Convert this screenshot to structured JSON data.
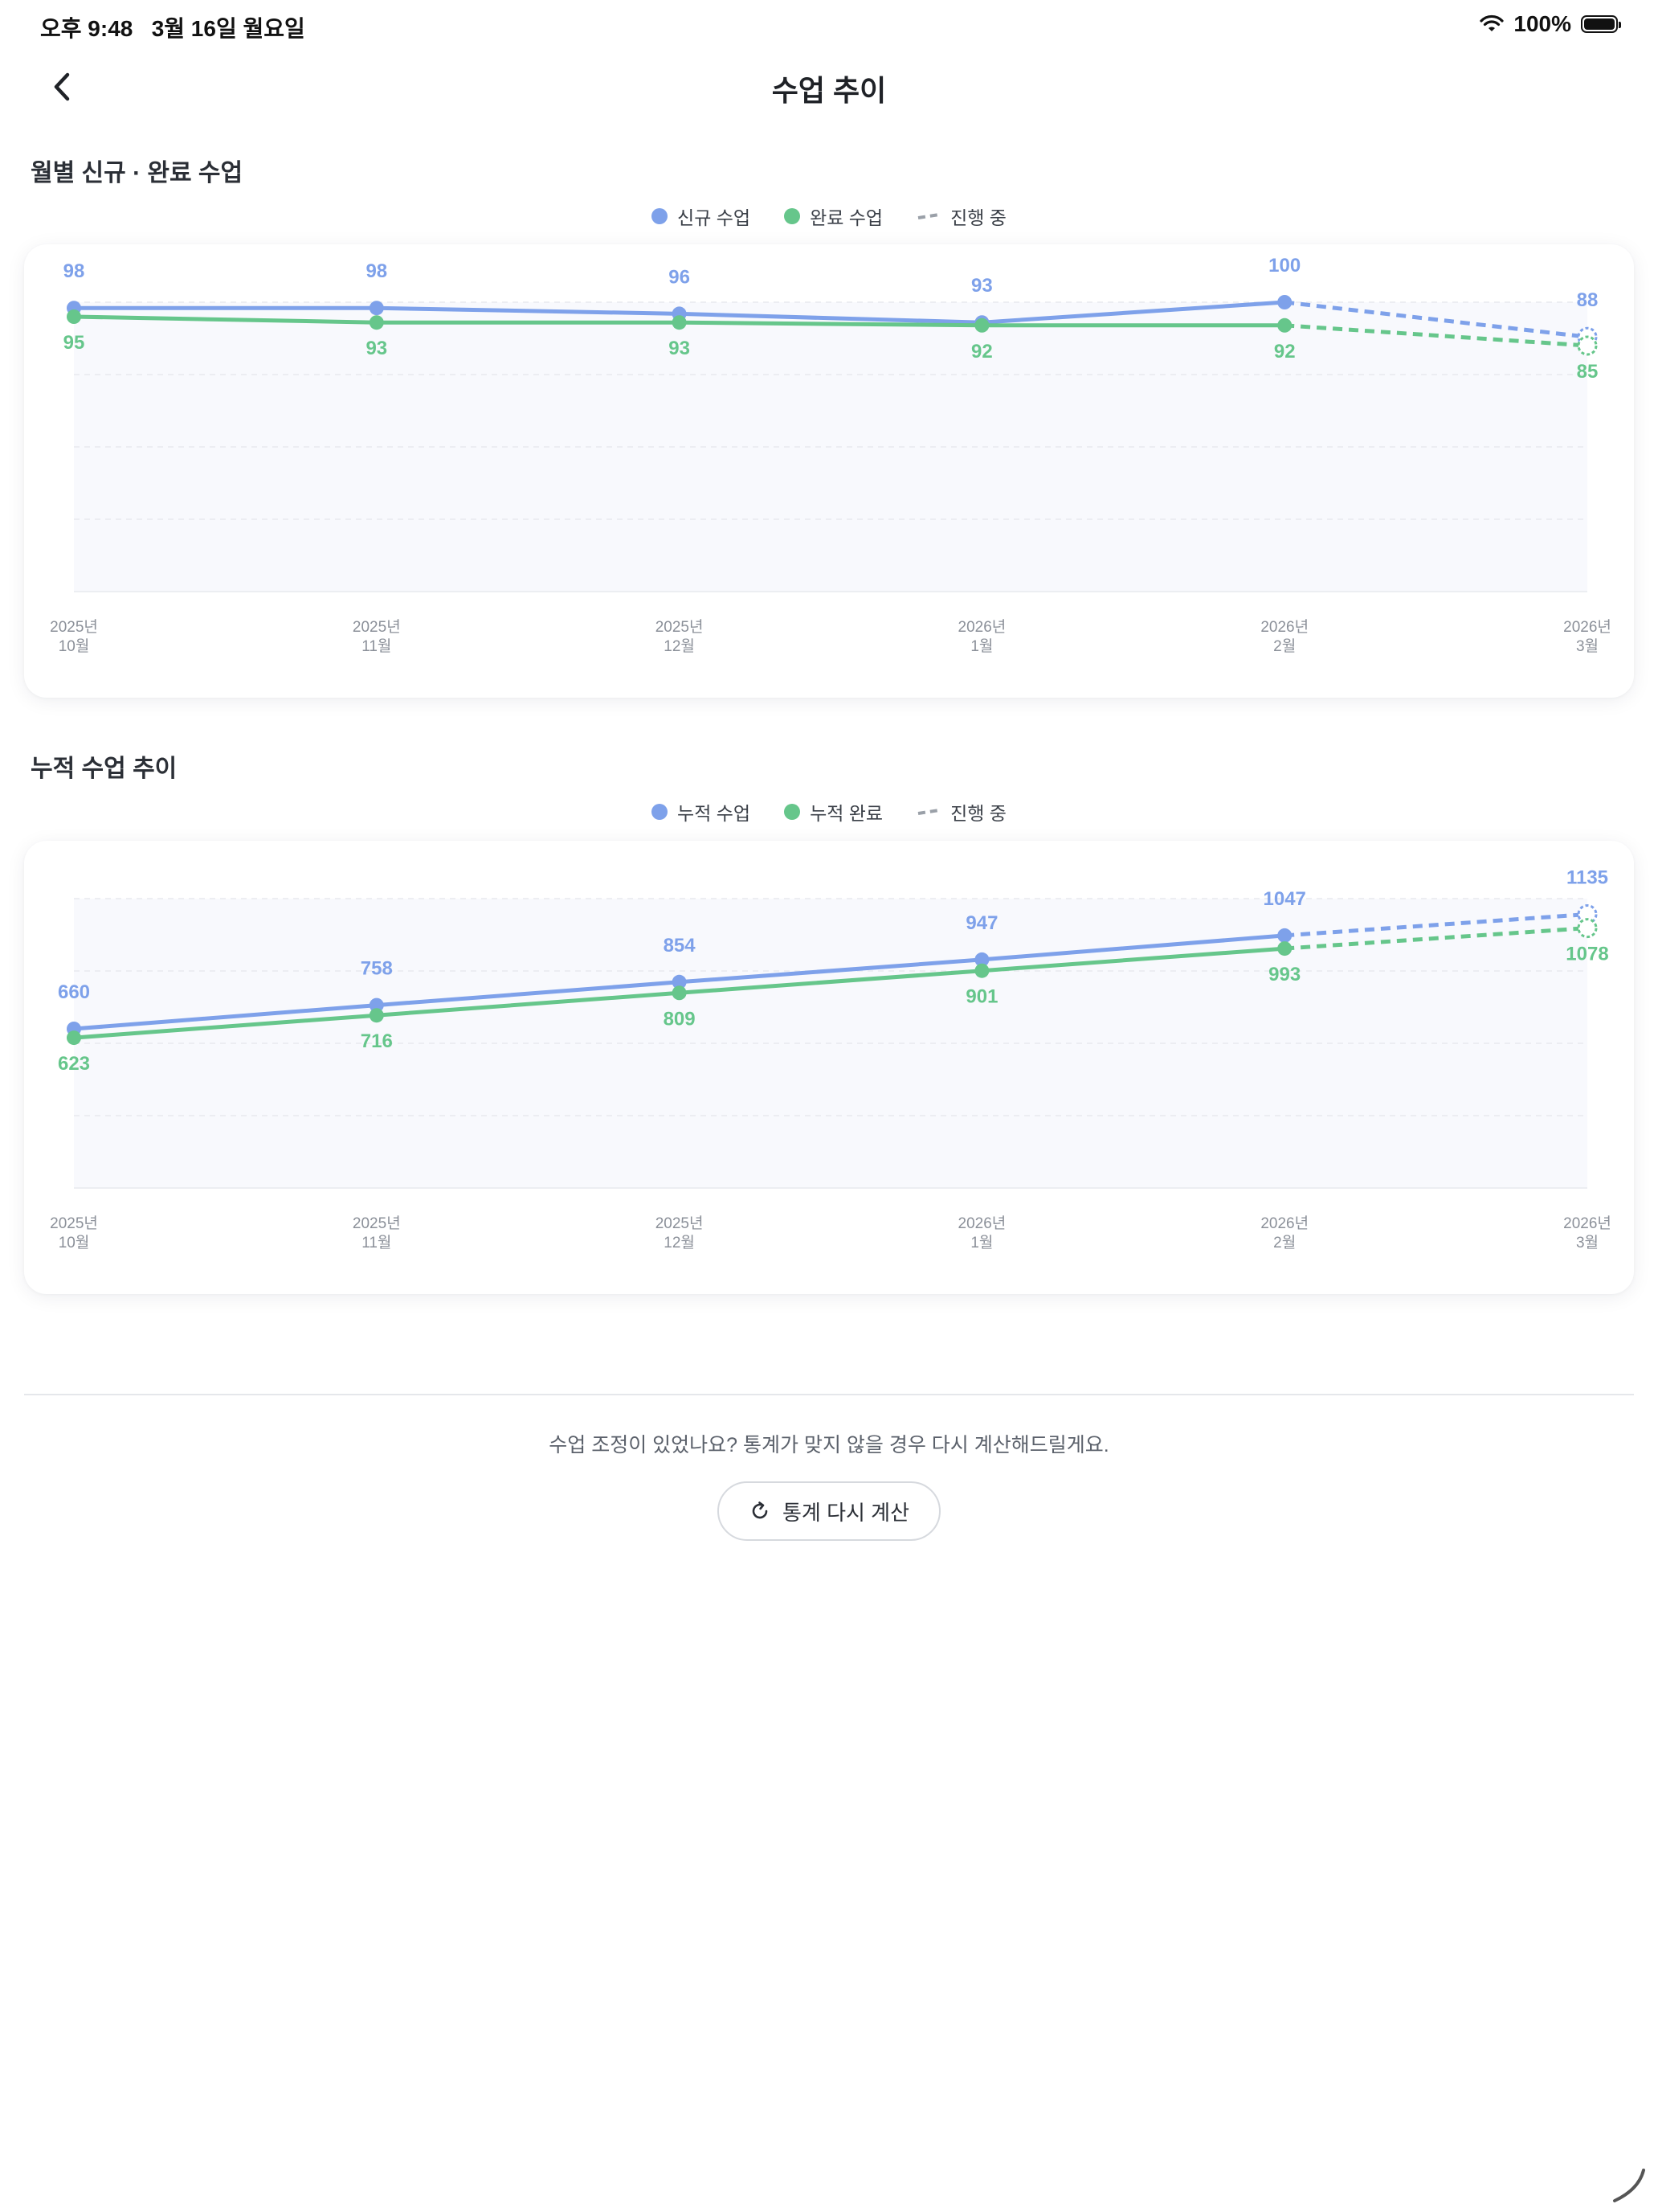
{
  "status_bar": {
    "time": "오후 9:48",
    "date": "3월 16일 월요일",
    "battery": "100%",
    "wifi_icon": "wifi-icon",
    "battery_icon": "battery-icon"
  },
  "header": {
    "title": "수업 추이",
    "back_icon": "chevron-left-icon"
  },
  "monthly_section": {
    "title": "월별 신규 · 완료 수업",
    "legend": {
      "new": "신규 수업",
      "done": "완료 수업",
      "progress": "진행 중"
    }
  },
  "cumulative_section": {
    "title": "누적 수업 추이",
    "legend": {
      "new": "누적 수업",
      "done": "누적 완료",
      "progress": "진행 중"
    }
  },
  "colors": {
    "blue": "#7ea1ea",
    "green": "#66c68b",
    "legend_dash": "#9aa0a8"
  },
  "chart_data": [
    {
      "type": "line",
      "categories": [
        [
          "2025년",
          "10월"
        ],
        [
          "2025년",
          "11월"
        ],
        [
          "2025년",
          "12월"
        ],
        [
          "2026년",
          "1월"
        ],
        [
          "2026년",
          "2월"
        ],
        [
          "2026년",
          "3월"
        ]
      ],
      "series": [
        {
          "name": "신규 수업",
          "color": "#7ea1ea",
          "values": [
            98,
            98,
            96,
            93,
            100,
            88
          ]
        },
        {
          "name": "완료 수업",
          "color": "#66c68b",
          "values": [
            95,
            93,
            93,
            92,
            92,
            85
          ]
        }
      ],
      "in_progress_from_index": 4,
      "ylim": [
        0,
        100
      ],
      "grid": true
    },
    {
      "type": "line",
      "categories": [
        [
          "2025년",
          "10월"
        ],
        [
          "2025년",
          "11월"
        ],
        [
          "2025년",
          "12월"
        ],
        [
          "2026년",
          "1월"
        ],
        [
          "2026년",
          "2월"
        ],
        [
          "2026년",
          "3월"
        ]
      ],
      "series": [
        {
          "name": "누적 수업",
          "color": "#7ea1ea",
          "values": [
            660,
            758,
            854,
            947,
            1047,
            1135
          ]
        },
        {
          "name": "누적 완료",
          "color": "#66c68b",
          "values": [
            623,
            716,
            809,
            901,
            993,
            1078
          ]
        }
      ],
      "in_progress_from_index": 4,
      "ylim": [
        0,
        1200
      ],
      "grid": true
    }
  ],
  "footer": {
    "message": "수업 조정이 있었나요? 통계가 맞지 않을 경우 다시 계산해드릴게요.",
    "button_label": "통계 다시 계산",
    "button_icon": "refresh-icon"
  }
}
